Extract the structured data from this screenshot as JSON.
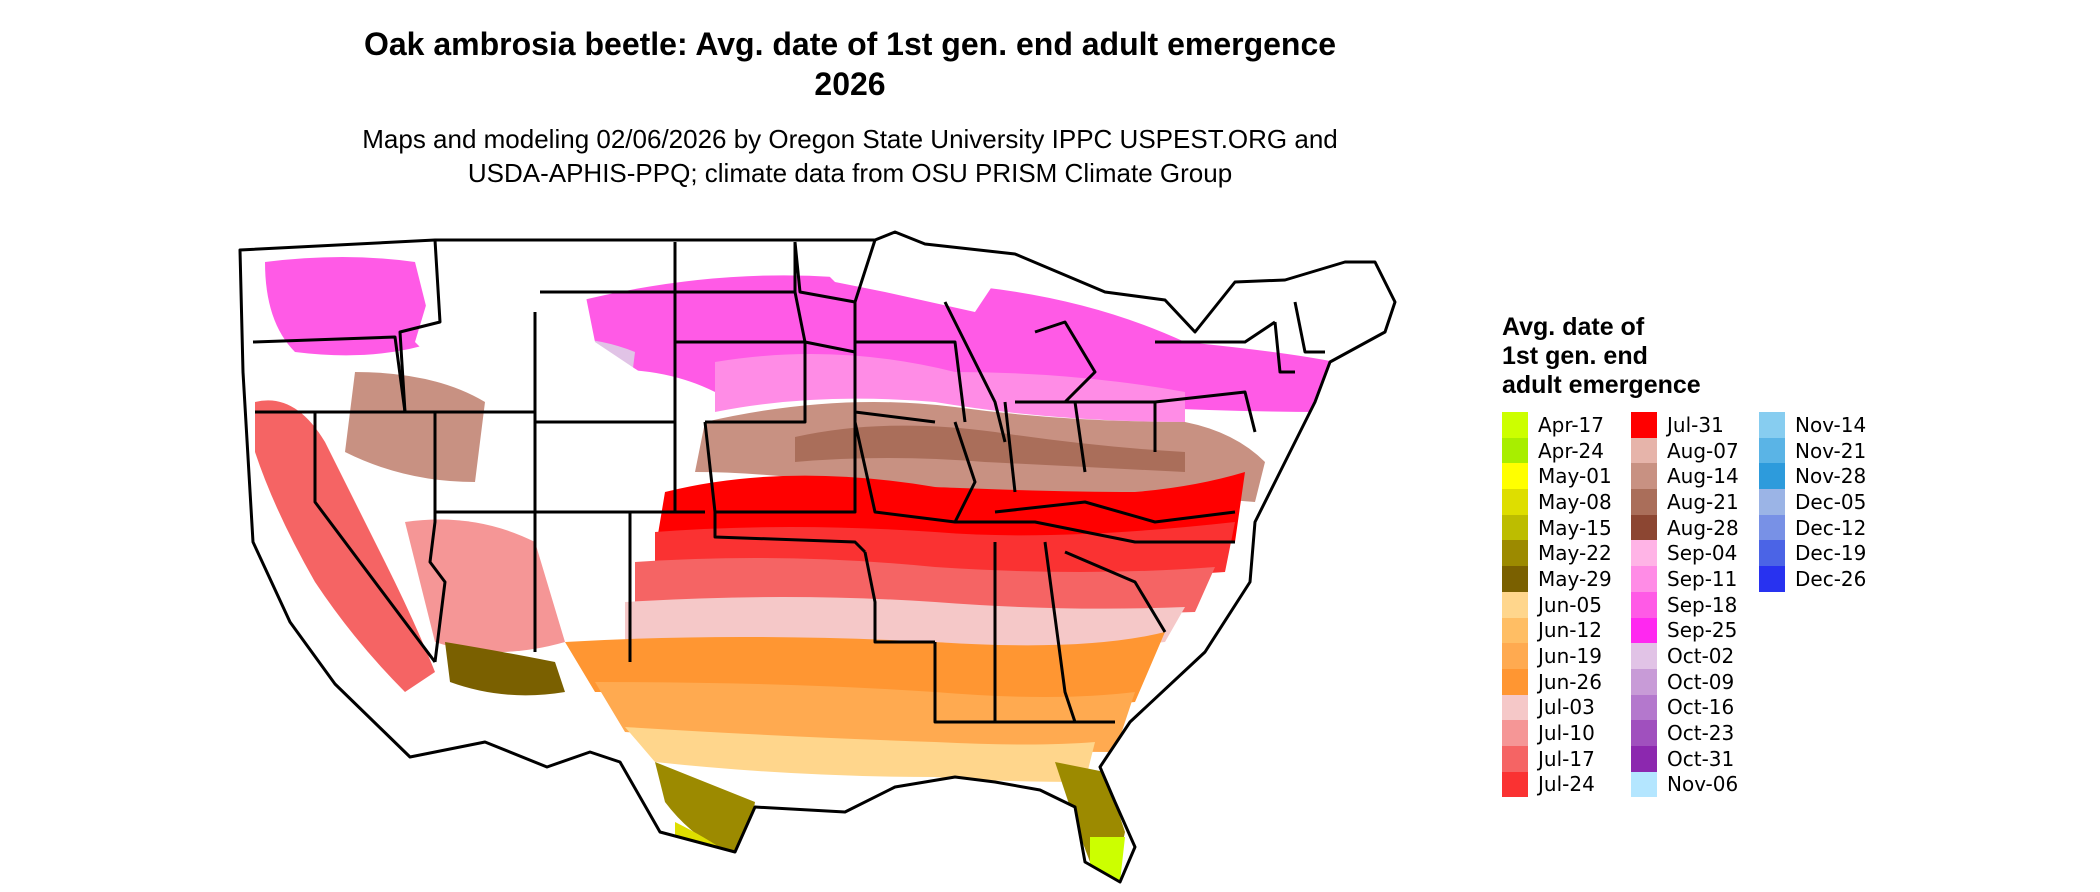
{
  "title_line1": "Oak ambrosia beetle: Avg. date of 1st gen. end adult emergence",
  "title_line2": "2026",
  "subtitle_line1": "Maps and modeling 02/06/2026 by Oregon State University IPPC USPEST.ORG and",
  "subtitle_line2": "USDA-APHIS-PPQ; climate data from OSU PRISM Climate Group",
  "legend": {
    "title_line1": "Avg. date of",
    "title_line2": "1st gen. end",
    "title_line3": "adult emergence",
    "columns": [
      [
        {
          "label": "Apr-17",
          "color": "#ccff00"
        },
        {
          "label": "Apr-24",
          "color": "#a8ee00"
        },
        {
          "label": "May-01",
          "color": "#ffff00"
        },
        {
          "label": "May-08",
          "color": "#dede00"
        },
        {
          "label": "May-15",
          "color": "#bdbd00"
        },
        {
          "label": "May-22",
          "color": "#9c8a00"
        },
        {
          "label": "May-29",
          "color": "#7a6000"
        },
        {
          "label": "Jun-05",
          "color": "#ffd68c"
        },
        {
          "label": "Jun-12",
          "color": "#ffbe64"
        },
        {
          "label": "Jun-19",
          "color": "#ffaa50"
        },
        {
          "label": "Jun-26",
          "color": "#ff9632"
        },
        {
          "label": "Jul-03",
          "color": "#f5c8c8"
        },
        {
          "label": "Jul-10",
          "color": "#f59696"
        },
        {
          "label": "Jul-17",
          "color": "#f56464"
        },
        {
          "label": "Jul-24",
          "color": "#fa3232"
        }
      ],
      [
        {
          "label": "Jul-31",
          "color": "#ff0000"
        },
        {
          "label": "Aug-07",
          "color": "#e6b4aa"
        },
        {
          "label": "Aug-14",
          "color": "#c89182"
        },
        {
          "label": "Aug-21",
          "color": "#aa6e5a"
        },
        {
          "label": "Aug-28",
          "color": "#8c4632"
        },
        {
          "label": "Sep-04",
          "color": "#ffb4e6"
        },
        {
          "label": "Sep-11",
          "color": "#ff8ce6"
        },
        {
          "label": "Sep-18",
          "color": "#ff5ae6"
        },
        {
          "label": "Sep-25",
          "color": "#ff28f0"
        },
        {
          "label": "Oct-02",
          "color": "#e1c3e6"
        },
        {
          "label": "Oct-09",
          "color": "#c89bd7"
        },
        {
          "label": "Oct-16",
          "color": "#b478cd"
        },
        {
          "label": "Oct-23",
          "color": "#a050be"
        },
        {
          "label": "Oct-31",
          "color": "#8c28af"
        },
        {
          "label": "Nov-06",
          "color": "#b4e6ff"
        }
      ],
      [
        {
          "label": "Nov-14",
          "color": "#87cdf0"
        },
        {
          "label": "Nov-21",
          "color": "#5ab4e6"
        },
        {
          "label": "Nov-28",
          "color": "#2d9bdc"
        },
        {
          "label": "Dec-05",
          "color": "#9bb4e6"
        },
        {
          "label": "Dec-12",
          "color": "#7891e6"
        },
        {
          "label": "Dec-19",
          "color": "#4b64e6"
        },
        {
          "label": "Dec-26",
          "color": "#2832f0"
        }
      ]
    ]
  }
}
